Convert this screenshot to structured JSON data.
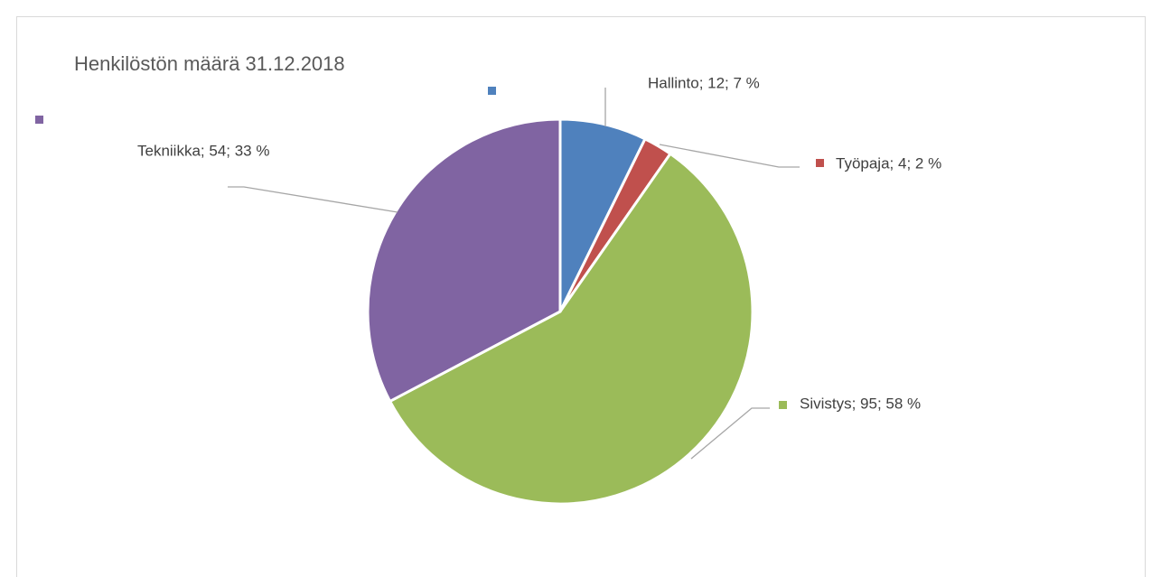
{
  "chart_data": {
    "type": "pie",
    "title": "Henkilöstön määrä 31.12.2018",
    "values": [
      12,
      4,
      95,
      54
    ],
    "value_labels": [
      "Hallinto; 12; 7 %",
      "Työpaja; 4; 2 %",
      "Sivistys; 95; 58 %",
      "Tekniikka; 54; 33 %"
    ],
    "colors": [
      "#4f81bd",
      "#c0504d",
      "#9bbb59",
      "#8064a2"
    ]
  }
}
